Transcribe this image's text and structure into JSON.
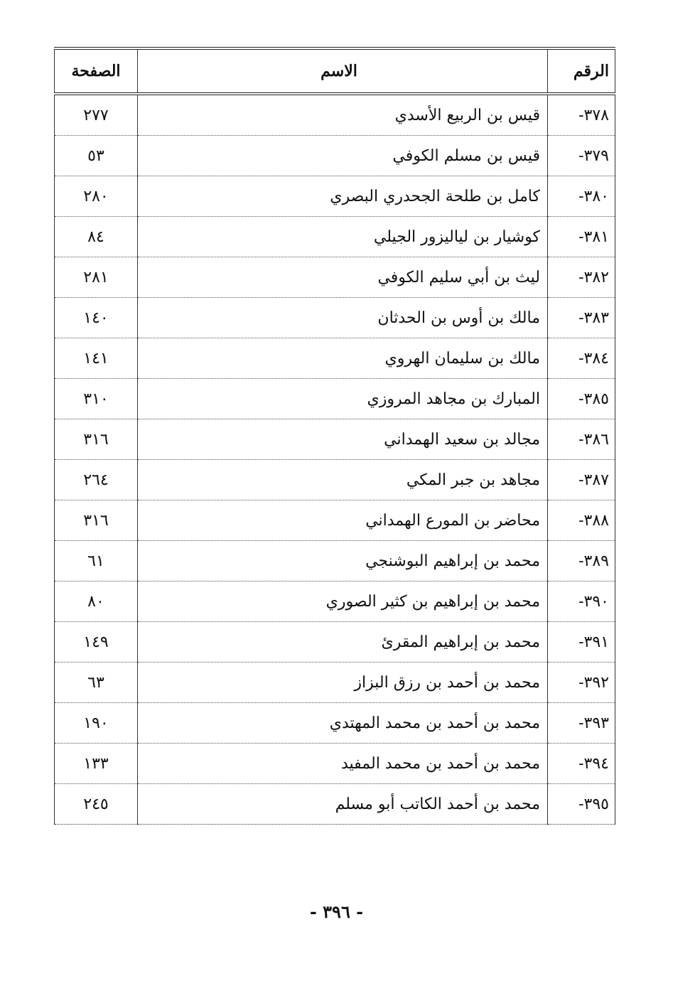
{
  "table": {
    "headers": {
      "number": "الرقم",
      "name": "الاسم",
      "page": "الصفحة"
    },
    "rows": [
      {
        "number": "٣٧٨-",
        "name": "قيس بن الربيع الأسدي",
        "page": "٢٧٧"
      },
      {
        "number": "٣٧٩-",
        "name": "قيس بن مسلم الكوفي",
        "page": "٥٣"
      },
      {
        "number": "٣٨٠-",
        "name": "كامل بن طلحة الجحدري البصري",
        "page": "٢٨٠"
      },
      {
        "number": "٣٨١-",
        "name": "كوشيار بن لياليزور الجيلي",
        "page": "٨٤"
      },
      {
        "number": "٣٨٢-",
        "name": "ليث بن أبي سليم الكوفي",
        "page": "٢٨١"
      },
      {
        "number": "٣٨٣-",
        "name": "مالك بن أوس بن الحدثان",
        "page": "١٤٠"
      },
      {
        "number": "٣٨٤-",
        "name": "مالك بن سليمان الهروي",
        "page": "١٤١"
      },
      {
        "number": "٣٨٥-",
        "name": "المبارك بن مجاهد المروزي",
        "page": "٣١٠"
      },
      {
        "number": "٣٨٦-",
        "name": "مجالد بن سعيد الهمداني",
        "page": "٣١٦"
      },
      {
        "number": "٣٨٧-",
        "name": "مجاهد بن جبر المكي",
        "page": "٢٦٤"
      },
      {
        "number": "٣٨٨-",
        "name": "محاضر بن المورع الهمداني",
        "page": "٣١٦"
      },
      {
        "number": "٣٨٩-",
        "name": "محمد بن إبراهيم البوشنجي",
        "page": "٦١"
      },
      {
        "number": "٣٩٠-",
        "name": "محمد بن إبراهيم بن كثير الصوري",
        "page": "٨٠"
      },
      {
        "number": "٣٩١-",
        "name": "محمد بن إبراهيم المقرئ",
        "page": "١٤٩"
      },
      {
        "number": "٣٩٢-",
        "name": "محمد بن أحمد بن رزق البزاز",
        "page": "٦٣"
      },
      {
        "number": "٣٩٣-",
        "name": "محمد بن أحمد بن محمد المهتدي",
        "page": "١٩٠"
      },
      {
        "number": "٣٩٤-",
        "name": "محمد بن أحمد بن محمد المفيد",
        "page": "١٣٣"
      },
      {
        "number": "٣٩٥-",
        "name": "محمد بن أحمد الكاتب أبو مسلم",
        "page": "٢٤٥"
      }
    ]
  },
  "footer": {
    "page_number": "- ٣٩٦ -"
  }
}
